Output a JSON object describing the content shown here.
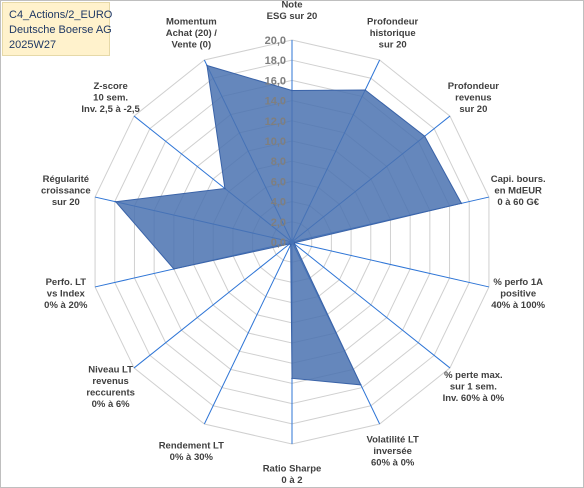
{
  "header": {
    "line1": "C4_Actions/2_EURO",
    "line2": "Deutsche Boerse AG",
    "line3": "2025W27"
  },
  "colors": {
    "fill": "#4a72b0",
    "stroke": "#3a63a8",
    "grid": "#d0d0d0",
    "spoke": "#2e75d6",
    "title_bg": "#fff2cc"
  },
  "chart_data": {
    "type": "radar",
    "rmin": 0,
    "rmax": 20,
    "ticks": [
      "0,0",
      "2,0",
      "4,0",
      "6,0",
      "8,0",
      "10,0",
      "12,0",
      "14,0",
      "16,0",
      "18,0",
      "20,0"
    ],
    "axes": [
      {
        "label": [
          "Note",
          "ESG sur 20"
        ],
        "value": 15.0
      },
      {
        "label": [
          "Profondeur",
          "historique",
          "sur 20"
        ],
        "value": 16.7
      },
      {
        "label": [
          "Profondeur",
          "revenus",
          "sur 20"
        ],
        "value": 16.8
      },
      {
        "label": [
          "Capi. bours.",
          "en MdEUR",
          "0 à 60 G€"
        ],
        "value": 17.2
      },
      {
        "label": [
          "% perfo 1A",
          "positive",
          "40% à 100%"
        ],
        "value": 0.3
      },
      {
        "label": [
          "% perte max.",
          "sur 1 sem.",
          "Inv. 60% à 0%"
        ],
        "value": 0.3
      },
      {
        "label": [
          "Volatilité LT",
          "inversée",
          "60% à 0%"
        ],
        "value": 15.7
      },
      {
        "label": [
          "Ratio Sharpe",
          "0 à 2"
        ],
        "value": 13.5
      },
      {
        "label": [
          "Rendement LT",
          "0% à 30%"
        ],
        "value": 0.3
      },
      {
        "label": [
          "Niveau LT",
          "revenus",
          "reccurents",
          "0% à 6%"
        ],
        "value": 0.3
      },
      {
        "label": [
          "Perfo. LT",
          "vs Index",
          "0% à 20%"
        ],
        "value": 12.0
      },
      {
        "label": [
          "Perfo. LT",
          "vs Index",
          "0% à 20%"
        ],
        "value": 0.3
      },
      {
        "label": [
          "Régularité",
          "croissance",
          "sur 20"
        ],
        "value": 17.9
      },
      {
        "label": [
          "Z-score",
          "10 sem.",
          "Inv. 2,5 à -2,5"
        ],
        "value": 8.5
      },
      {
        "label": [
          "Momentum",
          "Achat (20) /",
          "Vente (0)"
        ],
        "value": 19.4
      }
    ]
  }
}
